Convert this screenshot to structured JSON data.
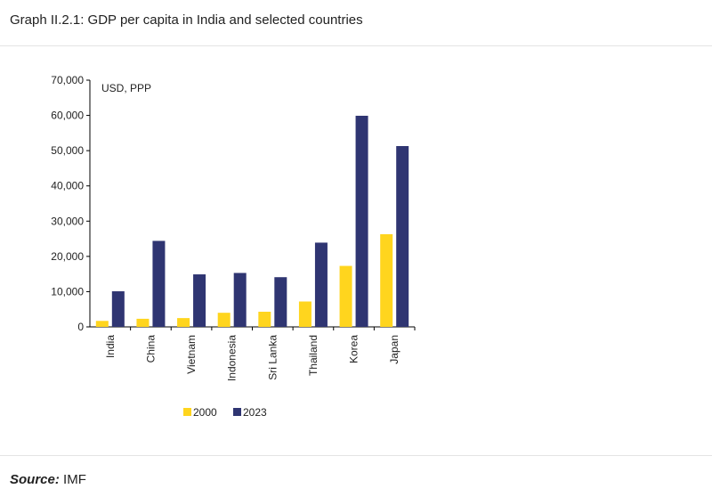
{
  "page": {
    "title": "Graph II.2.1: GDP per capita in India and selected countries",
    "source_label": "Source:",
    "source_value": "IMF"
  },
  "chart_data": {
    "type": "bar",
    "unit_label": "USD, PPP",
    "categories": [
      "India",
      "China",
      "Vietnam",
      "Indonesia",
      "Sri Lanka",
      "Thailand",
      "Korea",
      "Japan"
    ],
    "series": [
      {
        "name": "2000",
        "color": "#ffd51e",
        "values": [
          1700,
          2300,
          2500,
          4000,
          4300,
          7200,
          17300,
          26300
        ]
      },
      {
        "name": "2023",
        "color": "#2f3572",
        "values": [
          10100,
          24400,
          14900,
          15300,
          14100,
          23900,
          59900,
          51300
        ]
      }
    ],
    "ylim": [
      0,
      70000
    ],
    "yticks": [
      "0",
      "10,000",
      "20,000",
      "30,000",
      "40,000",
      "50,000",
      "60,000",
      "70,000"
    ],
    "grid": false,
    "legend": "bottom"
  }
}
